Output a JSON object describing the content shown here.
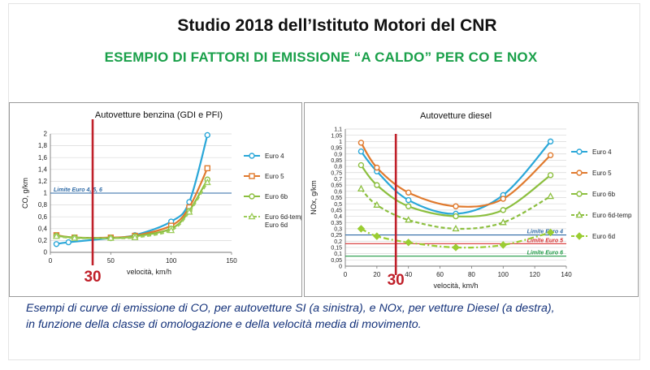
{
  "header": {
    "title": "Studio 2018 dell’Istituto Motori  del CNR",
    "subtitle": "ESEMPIO DI FATTORI DI EMISSIONE “A CALDO” PER CO E NOX"
  },
  "caption": {
    "line1": "Esempi di curve di emissione di CO, per  autovetture SI (a sinistra), e NOx,  per vetture Diesel (a destra),",
    "line2": "in funzione della classe di omologazione  e della velocità media di movimento."
  },
  "chart_data": [
    {
      "type": "line",
      "title": "Autovetture benzina (GDI e PFI)",
      "xlabel": "velocità, km/h",
      "ylabel": "CO, g/km",
      "xlim": [
        0,
        150
      ],
      "ylim": [
        0,
        2
      ],
      "xticks": [
        "0",
        "50",
        "100",
        "150"
      ],
      "yticks": [
        "0",
        "0,2",
        "0,4",
        "0,6",
        "0,8",
        "1",
        "1,2",
        "1,4",
        "1,6",
        "1,8",
        "2"
      ],
      "reference_lines": [
        {
          "label": "Limite Euro 4, 5, 6",
          "y": 1,
          "color": "#2e6aa6"
        }
      ],
      "marker_line": {
        "x": 35,
        "label": "30",
        "color": "#c0202a"
      },
      "series": [
        {
          "name": "Euro 4",
          "color": "#2aa7d8",
          "marker": "circle",
          "dashed": false,
          "x": [
            5,
            15,
            50,
            70,
            100,
            115,
            130
          ],
          "y": [
            0.14,
            0.17,
            0.24,
            0.29,
            0.52,
            0.85,
            1.98
          ]
        },
        {
          "name": "Euro 5",
          "color": "#e07a2e",
          "marker": "square",
          "dashed": false,
          "x": [
            5,
            20,
            50,
            70,
            100,
            115,
            130
          ],
          "y": [
            0.29,
            0.25,
            0.25,
            0.28,
            0.45,
            0.76,
            1.42
          ]
        },
        {
          "name": "Euro 6b",
          "color": "#8cbf3f",
          "marker": "circle",
          "dashed": false,
          "x": [
            5,
            20,
            50,
            70,
            100,
            115,
            130
          ],
          "y": [
            0.28,
            0.25,
            0.24,
            0.27,
            0.4,
            0.7,
            1.23
          ]
        },
        {
          "name": "Euro 6d-temp, Euro 6d",
          "color": "#9ccc5a",
          "marker": "triangle",
          "dashed": true,
          "x": [
            5,
            20,
            50,
            70,
            100,
            115,
            130
          ],
          "y": [
            0.27,
            0.24,
            0.24,
            0.25,
            0.37,
            0.68,
            1.18
          ]
        }
      ],
      "legend": [
        {
          "line1": "Euro 4",
          "line2": ""
        },
        {
          "line1": "Euro 5",
          "line2": ""
        },
        {
          "line1": "Euro 6b",
          "line2": ""
        },
        {
          "line1": "Euro 6d-temp,",
          "line2": "Euro 6d"
        }
      ]
    },
    {
      "type": "line",
      "title": "Autovetture diesel",
      "xlabel": "velocità, km/h",
      "ylabel": "NOx, g/km",
      "xlim": [
        0,
        140
      ],
      "ylim": [
        0,
        1.1
      ],
      "xticks": [
        "0",
        "20",
        "40",
        "60",
        "80",
        "100",
        "120",
        "140"
      ],
      "yticks": [
        "0",
        "0,05",
        "0,1",
        "0,15",
        "0,2",
        "0,25",
        "0,3",
        "0,35",
        "0,4",
        "0,45",
        "0,5",
        "0,55",
        "0,6",
        "0,65",
        "0,7",
        "0,75",
        "0,8",
        "0,85",
        "0,9",
        "0,95",
        "1",
        "1,05",
        "1,1"
      ],
      "reference_lines": [
        {
          "label": "Limite Euro 4",
          "y": 0.25,
          "color": "#2e6aa6"
        },
        {
          "label": "Limite Euro 5",
          "y": 0.18,
          "color": "#d63030"
        },
        {
          "label": "Limite Euro 6",
          "y": 0.08,
          "color": "#1f9a45"
        }
      ],
      "marker_line": {
        "x": 32,
        "label": "30",
        "color": "#c0202a"
      },
      "series": [
        {
          "name": "Euro 4",
          "color": "#2aa7d8",
          "marker": "circle",
          "dashed": false,
          "x": [
            10,
            20,
            40,
            70,
            100,
            130
          ],
          "y": [
            0.92,
            0.76,
            0.53,
            0.42,
            0.57,
            1.0
          ]
        },
        {
          "name": "Euro 5",
          "color": "#e07a2e",
          "marker": "circle",
          "dashed": false,
          "x": [
            10,
            20,
            40,
            70,
            100,
            130
          ],
          "y": [
            0.99,
            0.79,
            0.59,
            0.48,
            0.54,
            0.89
          ]
        },
        {
          "name": "Euro 6b",
          "color": "#8cbf3f",
          "marker": "circle",
          "dashed": false,
          "x": [
            10,
            20,
            40,
            70,
            100,
            130
          ],
          "y": [
            0.81,
            0.65,
            0.48,
            0.4,
            0.45,
            0.73
          ]
        },
        {
          "name": "Euro 6d-temp",
          "color": "#8cbf3f",
          "marker": "triangle",
          "dashed": true,
          "x": [
            10,
            20,
            40,
            70,
            100,
            130
          ],
          "y": [
            0.62,
            0.49,
            0.37,
            0.3,
            0.35,
            0.56
          ]
        },
        {
          "name": "Euro 6d",
          "color": "#9acd32",
          "marker": "diamond",
          "dashed": true,
          "x": [
            10,
            20,
            40,
            70,
            100,
            130
          ],
          "y": [
            0.3,
            0.24,
            0.19,
            0.15,
            0.17,
            0.27
          ]
        }
      ],
      "legend": [
        {
          "line1": "Euro 4",
          "line2": ""
        },
        {
          "line1": "Euro 5",
          "line2": ""
        },
        {
          "line1": "Euro 6b",
          "line2": ""
        },
        {
          "line1": "Euro 6d-temp",
          "line2": ""
        },
        {
          "line1": "Euro 6d",
          "line2": ""
        }
      ]
    }
  ]
}
